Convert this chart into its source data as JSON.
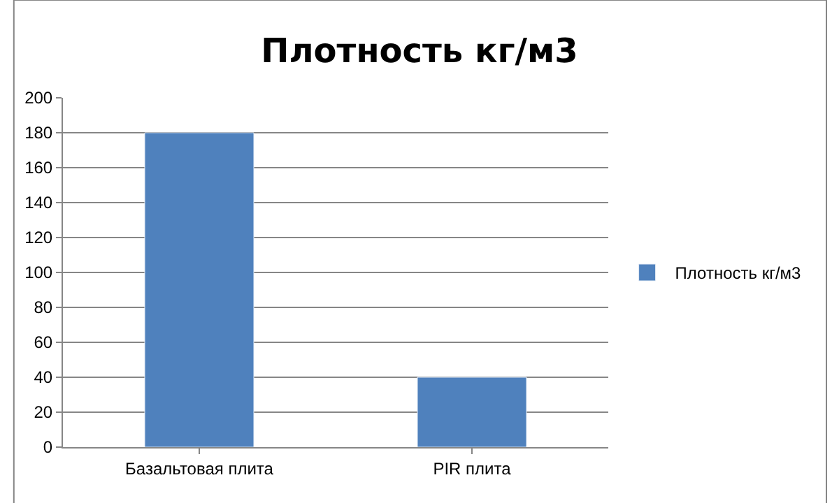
{
  "chart_data": {
    "type": "bar",
    "title": "Плотность кг/м3",
    "categories": [
      "Базальтовая плита",
      "PIR плита"
    ],
    "series": [
      {
        "name": "Плотность кг/м3",
        "color": "#4f81bd",
        "values": [
          180,
          40
        ]
      }
    ],
    "ylim": [
      0,
      200
    ],
    "yticks": [
      0,
      20,
      40,
      60,
      80,
      100,
      120,
      140,
      160,
      180,
      200
    ],
    "grid": "y",
    "legend": "right"
  }
}
